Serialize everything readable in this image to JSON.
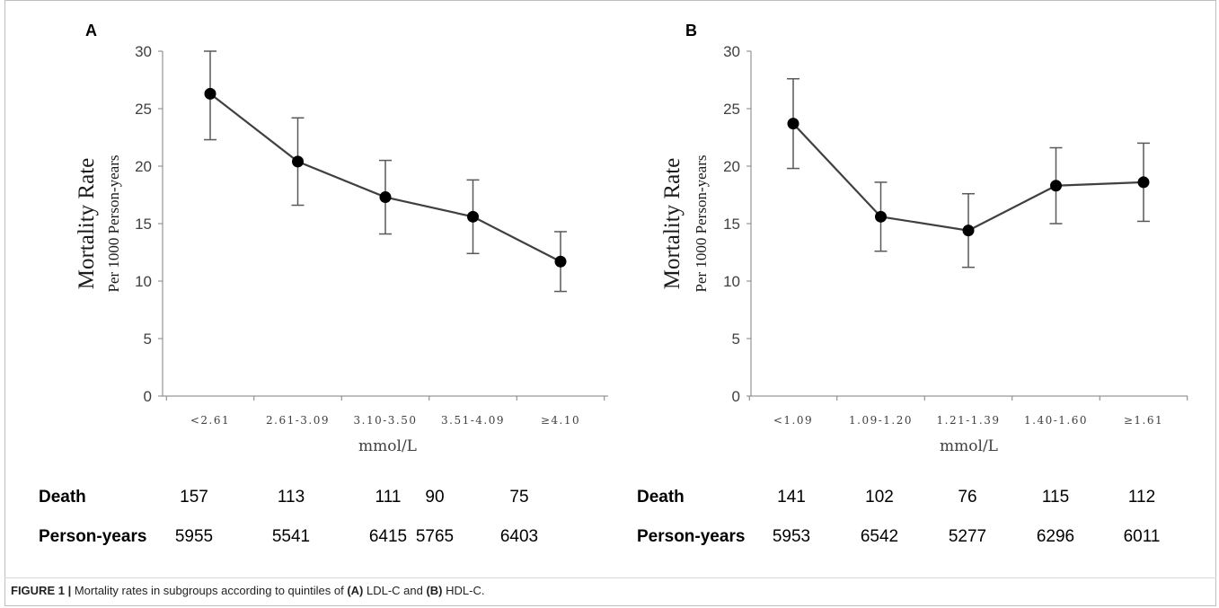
{
  "chart_data": [
    {
      "type": "line",
      "panel": "A",
      "categories": [
        "<2.61",
        "2.61-3.09",
        "3.10-3.50",
        "3.51-4.09",
        "≥4.10"
      ],
      "series": [
        {
          "values": [
            26.3,
            20.4,
            17.3,
            15.6,
            11.7
          ],
          "error_lower": [
            22.3,
            16.6,
            14.1,
            12.4,
            9.1
          ],
          "error_upper": [
            30.0,
            24.2,
            20.5,
            18.8,
            14.3
          ]
        }
      ],
      "xlabel": "mmol/L",
      "ylabel": "Mortality Rate",
      "ylabel_sub": "Per 1000 Person-years",
      "ylim": [
        0,
        30
      ],
      "yticks": [
        0,
        5,
        10,
        15,
        20,
        25,
        30
      ],
      "grid": false,
      "marker_color": "#000000",
      "line_color": "#404040"
    },
    {
      "type": "line",
      "panel": "B",
      "categories": [
        "<1.09",
        "1.09-1.20",
        "1.21-1.39",
        "1.40-1.60",
        "≥1.61"
      ],
      "series": [
        {
          "values": [
            23.7,
            15.6,
            14.4,
            18.3,
            18.6
          ],
          "error_lower": [
            19.8,
            12.6,
            11.2,
            15.0,
            15.2
          ],
          "error_upper": [
            27.6,
            18.6,
            17.6,
            21.6,
            22.0
          ]
        }
      ],
      "xlabel": "mmol/L",
      "ylabel": "Mortality Rate",
      "ylabel_sub": "Per 1000 Person-years",
      "ylim": [
        0,
        30
      ],
      "yticks": [
        0,
        5,
        10,
        15,
        20,
        25,
        30
      ],
      "grid": false,
      "marker_color": "#000000",
      "line_color": "#404040"
    }
  ],
  "stats": {
    "A": {
      "death_label": "Death",
      "death": [
        "157",
        "113",
        "111",
        "90",
        "75"
      ],
      "py_label": "Person-years",
      "person_years": [
        "5955",
        "5541",
        "6415",
        "5765",
        "6403"
      ]
    },
    "B": {
      "death_label": "Death",
      "death": [
        "141",
        "102",
        "76",
        "115",
        "112"
      ],
      "py_label": "Person-years",
      "person_years": [
        "5953",
        "6542",
        "5277",
        "6296",
        "6011"
      ]
    }
  },
  "caption": {
    "figure_label": "FIGURE 1 |",
    "text_1": " Mortality rates in subgroups according to quintiles of ",
    "a_label": "(A)",
    "text_2": " LDL-C and ",
    "b_label": "(B)",
    "text_3": " HDL-C."
  }
}
